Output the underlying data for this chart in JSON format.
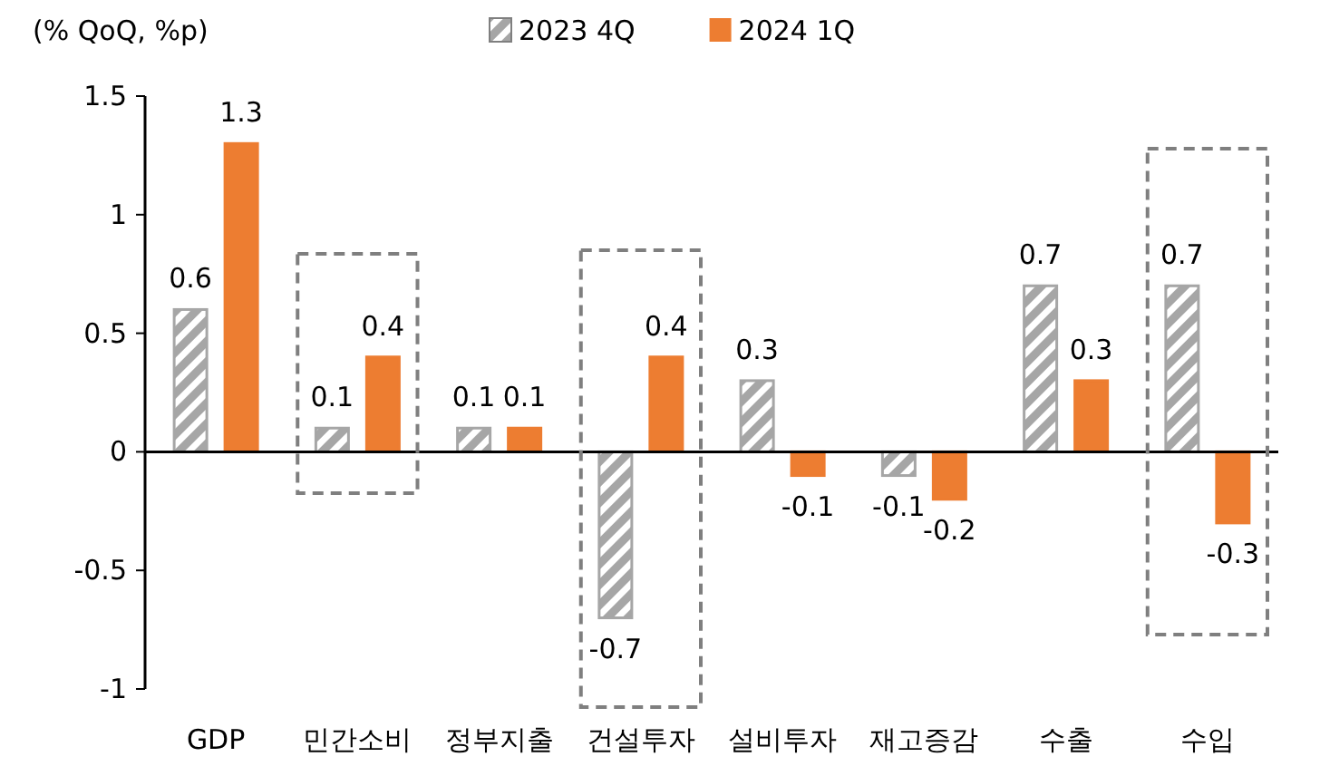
{
  "chart_data": {
    "type": "bar",
    "ylabel": "(% QoQ, %p)",
    "categories": [
      "GDP",
      "민간소비",
      "정부지출",
      "건설투자",
      "설비투자",
      "재고증감",
      "수출",
      "수입"
    ],
    "series": [
      {
        "name": "2023 4Q",
        "color": "#a6a6a6",
        "values": [
          0.6,
          0.1,
          0.1,
          -0.7,
          0.3,
          -0.1,
          0.7,
          0.7
        ]
      },
      {
        "name": "2024 1Q",
        "color": "#ed7d31",
        "values": [
          1.3,
          0.4,
          0.1,
          0.4,
          -0.1,
          -0.2,
          0.3,
          -0.3
        ]
      }
    ],
    "ylim": [
      -1,
      1.5
    ],
    "yticks": [
      {
        "value": -1,
        "label": "-1"
      },
      {
        "value": -0.5,
        "label": "-0.5"
      },
      0,
      0.5,
      1,
      1.5
    ],
    "data_labels": true,
    "legend": "top"
  }
}
